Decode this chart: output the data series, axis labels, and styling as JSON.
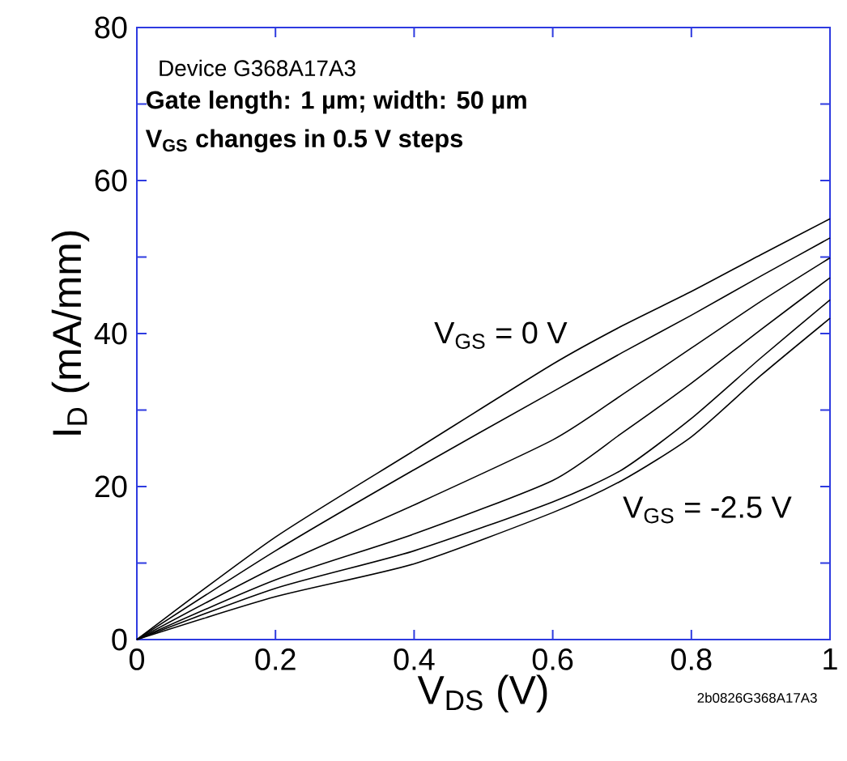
{
  "chart_data": {
    "type": "line",
    "xlabel": "V$_{DS}$ (V)",
    "ylabel": "I$_{D}$ (mA/mm)",
    "x": [
      0,
      0.2,
      0.4,
      0.6,
      0.7,
      0.8,
      0.9,
      1
    ],
    "series": [
      {
        "color": "#000000",
        "values": [
          0,
          13.4,
          24.7,
          36.0,
          41.0,
          45.5,
          50.3,
          55.0
        ]
      },
      {
        "color": "#000000",
        "values": [
          0,
          11.6,
          22.2,
          32.4,
          37.5,
          42.4,
          47.5,
          52.5
        ]
      },
      {
        "color": "#000000",
        "values": [
          0,
          9.5,
          17.6,
          26.1,
          32.0,
          38.1,
          44.2,
          49.9
        ]
      },
      {
        "color": "#000000",
        "values": [
          0,
          7.8,
          13.8,
          20.8,
          27.0,
          33.5,
          40.5,
          47.3
        ]
      },
      {
        "color": "#000000",
        "values": [
          0,
          6.7,
          11.6,
          18.0,
          22.2,
          28.9,
          36.8,
          44.4
        ]
      },
      {
        "color": "#000000",
        "values": [
          0,
          5.6,
          9.9,
          16.6,
          20.8,
          26.5,
          34.5,
          42.0
        ]
      }
    ],
    "xlim": [
      0,
      1
    ],
    "ylim": [
      0,
      80
    ],
    "xticks": [
      0,
      0.2,
      0.4,
      0.6,
      0.8,
      1
    ],
    "yticks": [
      0,
      {
        "value": 10,
        "label": null
      },
      20,
      {
        "value": 30,
        "label": null
      },
      40,
      {
        "value": 50,
        "label": null
      },
      60,
      {
        "value": 70,
        "label": null
      },
      80
    ],
    "annotations": [
      "Device G368A17A3",
      "Gate length: 1 µm; width: 50 µm",
      "V$_{GS}$ changes in 0.5 V steps",
      "V$_{GS}$ = 0 V",
      "V$_{GS}$ = -2.5 V",
      "2b0826G368A17A3"
    ],
    "grid": false,
    "marker": "none",
    "line_style": "solid"
  }
}
